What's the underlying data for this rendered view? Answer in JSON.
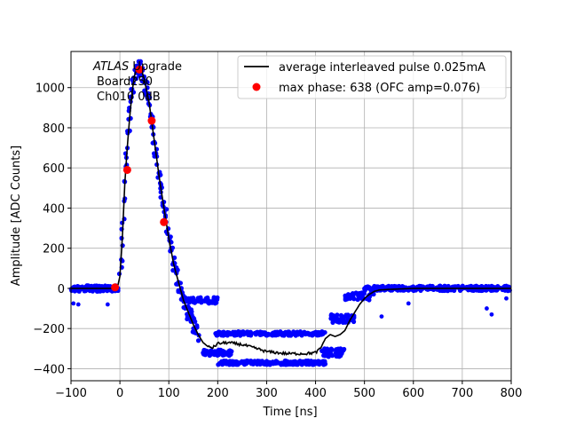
{
  "chart_data": {
    "type": "scatter",
    "xlabel": "Time [ns]",
    "ylabel": "Amplitude [ADC Counts]",
    "xlim": [
      -100,
      800
    ],
    "ylim": [
      -460,
      1180
    ],
    "xticks": [
      -100,
      0,
      100,
      200,
      300,
      400,
      500,
      600,
      700,
      800
    ],
    "yticks": [
      -400,
      -200,
      0,
      200,
      400,
      600,
      800,
      1000
    ],
    "grid": true,
    "legend_position": "top-right",
    "annotation": {
      "line1_italic": "ATLAS",
      "line1_rest": " Upgrade",
      "line2": "Board250",
      "line3": "Ch010 0dB"
    },
    "colors": {
      "samples": "#0000ff",
      "average": "#000000",
      "max_phase": "#ff0000",
      "grid": "#b0b0b0"
    },
    "series": [
      {
        "name": "average interleaved pulse 0.025mA",
        "kind": "line",
        "x": [
          -100,
          -20,
          -5,
          0,
          5,
          10,
          15,
          20,
          25,
          30,
          35,
          40,
          45,
          50,
          55,
          60,
          65,
          70,
          80,
          90,
          100,
          110,
          120,
          130,
          140,
          150,
          160,
          170,
          180,
          190,
          200,
          220,
          250,
          280,
          300,
          320,
          340,
          360,
          380,
          400,
          410,
          420,
          430,
          440,
          450,
          460,
          470,
          480,
          490,
          500,
          510,
          520,
          530,
          550,
          600,
          700,
          800
        ],
        "y": [
          0,
          0,
          5,
          60,
          250,
          520,
          700,
          850,
          980,
          1060,
          1095,
          1100,
          1080,
          1040,
          980,
          920,
          830,
          740,
          560,
          400,
          250,
          120,
          30,
          -60,
          -120,
          -180,
          -230,
          -270,
          -290,
          -295,
          -275,
          -270,
          -280,
          -300,
          -315,
          -320,
          -325,
          -325,
          -325,
          -320,
          -300,
          -250,
          -230,
          -240,
          -230,
          -210,
          -160,
          -120,
          -80,
          -50,
          -30,
          -15,
          -8,
          -5,
          0,
          0,
          0
        ]
      },
      {
        "name": "max phase: 638 (OFC amp=0.076)",
        "kind": "points",
        "x": [
          -10,
          15,
          40,
          65,
          90
        ],
        "y": [
          5,
          590,
          1090,
          835,
          330
        ]
      },
      {
        "kind": "scatter-band",
        "segments": [
          {
            "x": [
              -100,
              0
            ],
            "y_center": 0,
            "spread": 15
          },
          {
            "x": [
              130,
              200
            ],
            "y_center": -60,
            "spread": 15
          },
          {
            "x": [
              170,
              230
            ],
            "y_center": -320,
            "spread": 15
          },
          {
            "x": [
              195,
              420
            ],
            "y_center": -225,
            "spread": 10
          },
          {
            "x": [
              200,
              420
            ],
            "y_center": -370,
            "spread": 10
          },
          {
            "x": [
              410,
              460
            ],
            "y_center": -320,
            "spread": 20
          },
          {
            "x": [
              430,
              480
            ],
            "y_center": -150,
            "spread": 20
          },
          {
            "x": [
              460,
              520
            ],
            "y_center": -40,
            "spread": 20
          },
          {
            "x": [
              500,
              800
            ],
            "y_center": 0,
            "spread": 12
          }
        ]
      }
    ]
  }
}
